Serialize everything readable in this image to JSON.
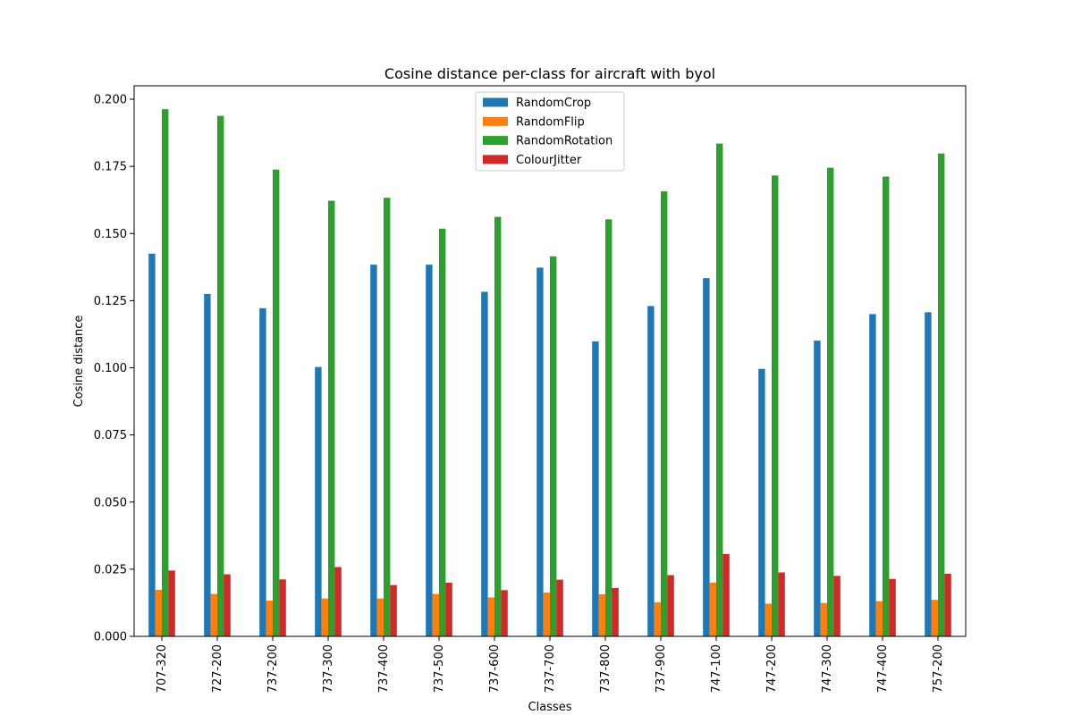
{
  "chart_data": {
    "type": "bar",
    "title": "Cosine distance per-class for aircraft with byol",
    "xlabel": "Classes",
    "ylabel": "Cosine distance",
    "ylim": [
      0,
      0.205
    ],
    "yticks": [
      "0.000",
      "0.025",
      "0.050",
      "0.075",
      "0.100",
      "0.125",
      "0.150",
      "0.175",
      "0.200"
    ],
    "grid": false,
    "legend_position": "top-center",
    "categories": [
      "707-320",
      "727-200",
      "737-200",
      "737-300",
      "737-400",
      "737-500",
      "737-600",
      "737-700",
      "737-800",
      "737-900",
      "747-100",
      "747-200",
      "747-300",
      "747-400",
      "757-200"
    ],
    "series": [
      {
        "name": "RandomCrop",
        "color": "#1f77b4",
        "values": [
          0.1425,
          0.1275,
          0.1222,
          0.1003,
          0.1384,
          0.1384,
          0.1283,
          0.1373,
          0.1098,
          0.123,
          0.1334,
          0.0996,
          0.1101,
          0.12,
          0.1207
        ]
      },
      {
        "name": "RandomFlip",
        "color": "#ff7f0e",
        "values": [
          0.0173,
          0.0158,
          0.0133,
          0.0141,
          0.0141,
          0.0158,
          0.0145,
          0.0163,
          0.0157,
          0.0127,
          0.02,
          0.0122,
          0.0124,
          0.0131,
          0.0136
        ]
      },
      {
        "name": "RandomRotation",
        "color": "#2ca02c",
        "values": [
          0.1963,
          0.1938,
          0.1738,
          0.1622,
          0.1633,
          0.1518,
          0.1562,
          0.1415,
          0.1553,
          0.1657,
          0.1835,
          0.1716,
          0.1745,
          0.1712,
          0.1798
        ]
      },
      {
        "name": "ColourJitter",
        "color": "#d62728",
        "values": [
          0.0245,
          0.0231,
          0.0212,
          0.0258,
          0.0191,
          0.02,
          0.0172,
          0.0211,
          0.018,
          0.0228,
          0.0307,
          0.0238,
          0.0225,
          0.0214,
          0.0233
        ]
      }
    ]
  }
}
